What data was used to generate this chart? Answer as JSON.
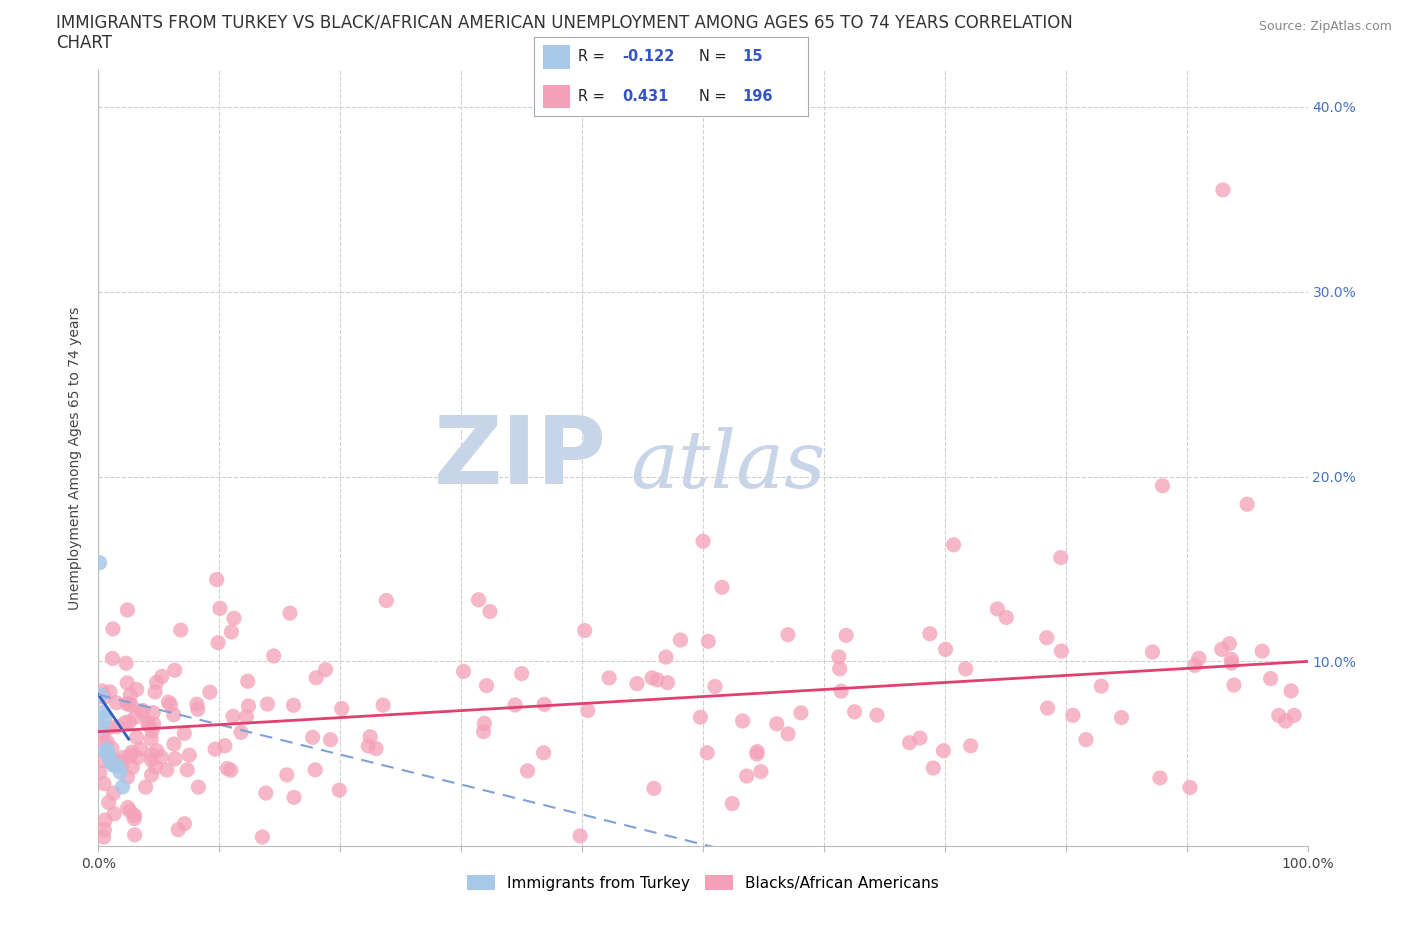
{
  "title_line1": "IMMIGRANTS FROM TURKEY VS BLACK/AFRICAN AMERICAN UNEMPLOYMENT AMONG AGES 65 TO 74 YEARS CORRELATION",
  "title_line2": "CHART",
  "source_text": "Source: ZipAtlas.com",
  "ylabel": "Unemployment Among Ages 65 to 74 years",
  "xlim": [
    0.0,
    1.0
  ],
  "ylim": [
    0.0,
    0.42
  ],
  "x_ticks": [
    0.0,
    0.1,
    0.2,
    0.3,
    0.4,
    0.5,
    0.6,
    0.7,
    0.8,
    0.9,
    1.0
  ],
  "y_ticks": [
    0.0,
    0.1,
    0.2,
    0.3,
    0.4
  ],
  "grid_color": "#d0d0d0",
  "background_color": "#ffffff",
  "blue_color": "#a8c8e8",
  "pink_color": "#f4a0b8",
  "blue_line_color": "#3060c0",
  "pink_line_color": "#e04070",
  "legend_R1": "-0.122",
  "legend_N1": "15",
  "legend_R2": "0.431",
  "legend_N2": "196",
  "label1": "Immigrants from Turkey",
  "label2": "Blacks/African Americans",
  "watermark_zip": "ZIP",
  "watermark_atlas": "atlas",
  "watermark_color": "#c8d4e8",
  "title_fontsize": 12,
  "axis_label_fontsize": 10,
  "tick_fontsize": 10
}
